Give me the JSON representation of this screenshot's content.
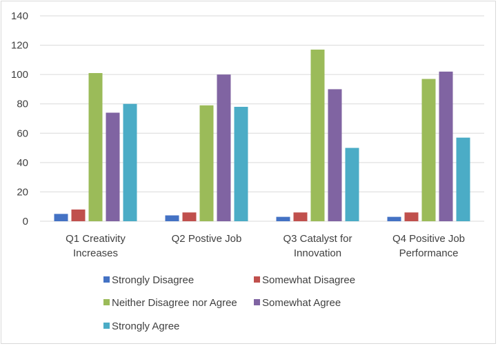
{
  "chart_data": {
    "type": "bar",
    "title": "",
    "xlabel": "",
    "ylabel": "",
    "ylim": [
      0,
      140
    ],
    "ytick_step": 20,
    "grid": true,
    "legend_position": "bottom",
    "categories": [
      [
        "Q1 Creativity",
        "Increases"
      ],
      [
        "Q2 Postive Job"
      ],
      [
        "Q3 Catalyst for",
        "Innovation"
      ],
      [
        "Q4 Positive Job",
        "Performance"
      ]
    ],
    "series": [
      {
        "name": "Strongly Disagree",
        "color": "#4472c4",
        "values": [
          5,
          4,
          3,
          3
        ]
      },
      {
        "name": "Somewhat Disagree",
        "color": "#c0504d",
        "values": [
          8,
          6,
          6,
          6
        ]
      },
      {
        "name": "Neither Disagree nor Agree",
        "color": "#9bbb59",
        "values": [
          101,
          79,
          117,
          97
        ]
      },
      {
        "name": "Somewhat Agree",
        "color": "#8064a2",
        "values": [
          74,
          100,
          90,
          102
        ]
      },
      {
        "name": "Strongly Agree",
        "color": "#4bacc6",
        "values": [
          80,
          78,
          50,
          57
        ]
      }
    ]
  }
}
